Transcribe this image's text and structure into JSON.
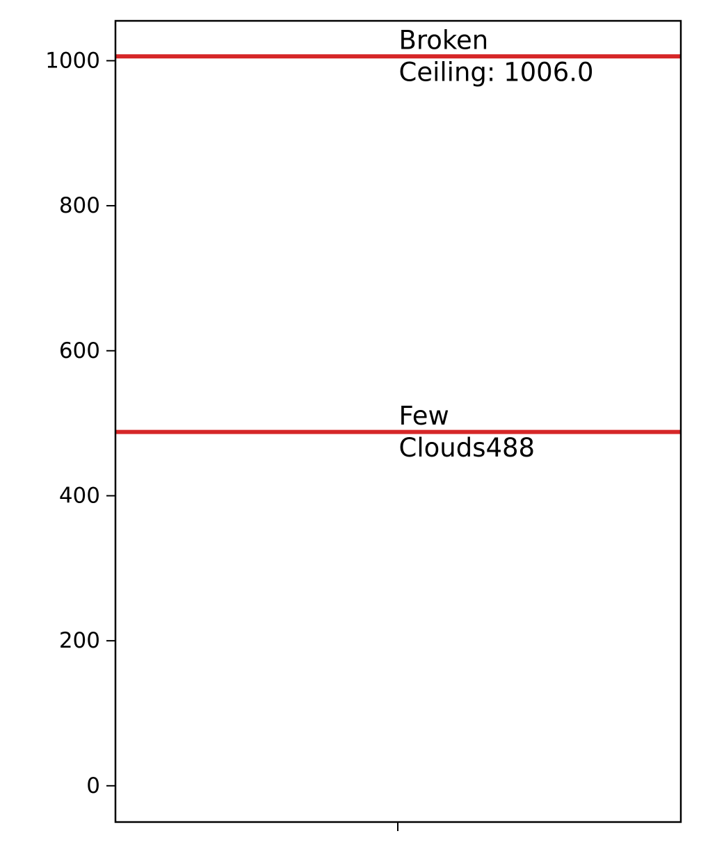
{
  "chart_data": {
    "type": "line",
    "title": "",
    "xlabel": "",
    "ylabel": "",
    "ylim": [
      -50,
      1055
    ],
    "yticks": [
      0,
      200,
      400,
      600,
      800,
      1000
    ],
    "grid": false,
    "legend": "none",
    "line_color": "#d62728",
    "lines": [
      {
        "value": 1006.0,
        "label_lines": [
          "Broken",
          "Ceiling: 1006.0"
        ]
      },
      {
        "value": 488,
        "label_lines": [
          "Few",
          "Clouds488"
        ]
      }
    ]
  }
}
